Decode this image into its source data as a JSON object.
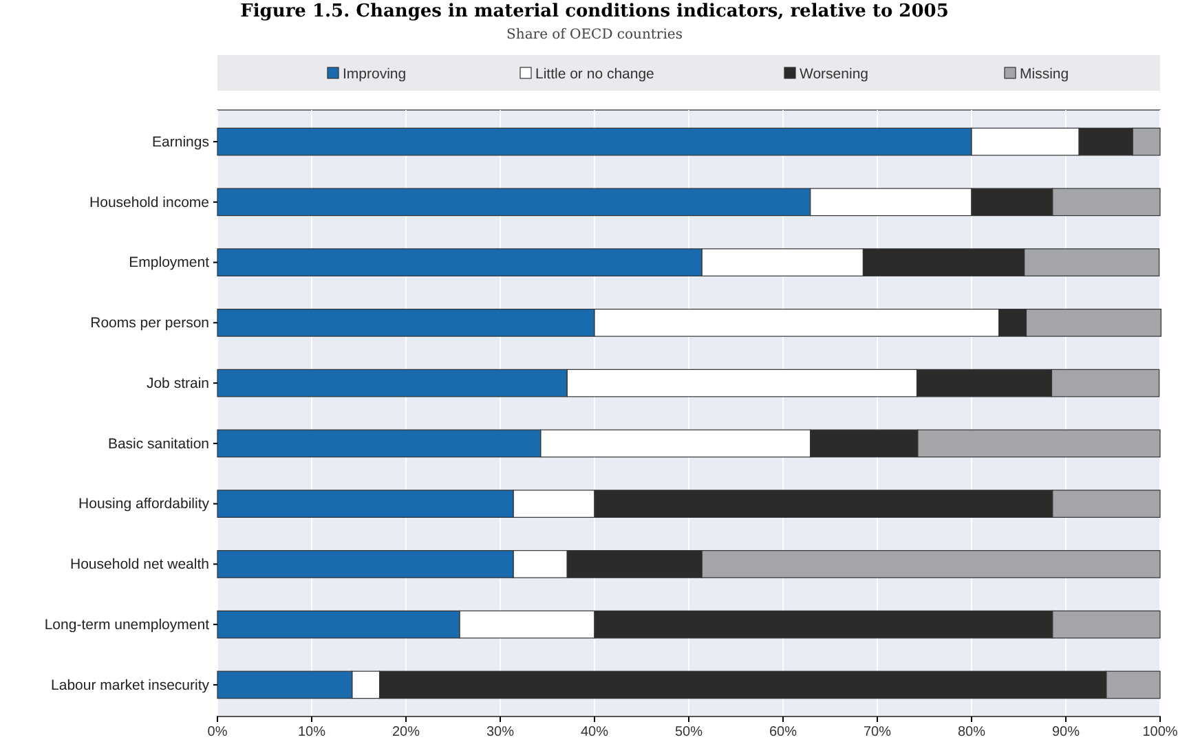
{
  "chart_data": {
    "type": "bar",
    "orientation": "horizontal",
    "stacked": true,
    "title": "Figure 1.5. Changes in material conditions indicators, relative to 2005",
    "subtitle": "Share of OECD countries",
    "categories": [
      "Earnings",
      "Household income",
      "Employment",
      "Rooms per person",
      "Job strain",
      "Basic sanitation",
      "Housing affordability",
      "Household net wealth",
      "Long-term unemployment",
      "Labour market insecurity"
    ],
    "series": [
      {
        "name": "Improving",
        "color": "#1a6aae",
        "values": [
          80,
          62.9,
          51.4,
          40,
          37.1,
          34.3,
          31.4,
          31.4,
          25.7,
          14.3
        ]
      },
      {
        "name": "Little or no change",
        "color": "#ffffff",
        "values": [
          11.4,
          17.1,
          17.1,
          42.9,
          37.1,
          28.6,
          8.6,
          5.7,
          14.3,
          2.9
        ]
      },
      {
        "name": "Worsening",
        "color": "#2d2a2a",
        "values": [
          5.7,
          8.6,
          17.1,
          2.9,
          14.3,
          11.4,
          48.6,
          14.3,
          48.6,
          77.1
        ]
      },
      {
        "name": "Missing",
        "color": "#a3a5a8",
        "values": [
          2.9,
          11.4,
          14.3,
          14.3,
          11.4,
          25.7,
          11.4,
          48.6,
          11.4,
          5.7
        ]
      }
    ],
    "xlim": [
      0,
      100
    ],
    "xticks": [
      {
        "value": 0,
        "label": "0%"
      },
      {
        "value": 10,
        "label": "10%"
      },
      {
        "value": 20,
        "label": "20%"
      },
      {
        "value": 30,
        "label": "30%"
      },
      {
        "value": 40,
        "label": "40%"
      },
      {
        "value": 50,
        "label": "50%"
      },
      {
        "value": 60,
        "label": "60%"
      },
      {
        "value": 70,
        "label": "70%"
      },
      {
        "value": 80,
        "label": "80%"
      },
      {
        "value": 90,
        "label": "90%"
      },
      {
        "value": 100,
        "label": "100%"
      }
    ],
    "grid": "x",
    "legend": "top"
  }
}
